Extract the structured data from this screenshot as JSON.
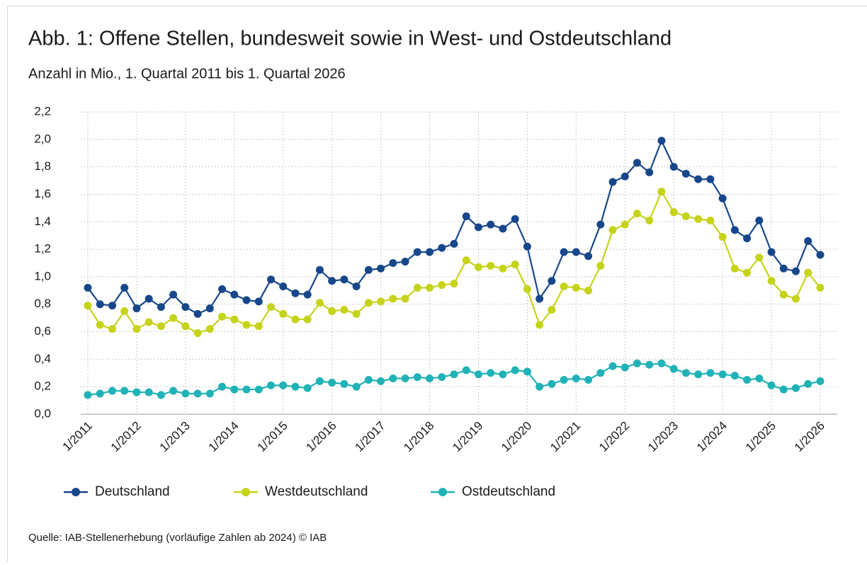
{
  "chart_data": {
    "type": "line",
    "title": "Abb. 1: Offene Stellen, bundesweit sowie in West- und Ostdeutschland",
    "subtitle": "Anzahl in Mio., 1. Quartal 2011 bis 1. Quartal 2026",
    "source": "Quelle: IAB-Stellenerhebung (vorläufige Zahlen ab 2024) © IAB",
    "categories": [
      "1/2011",
      null,
      null,
      null,
      "1/2012",
      null,
      null,
      null,
      "1/2013",
      null,
      null,
      null,
      "1/2014",
      null,
      null,
      null,
      "1/2015",
      null,
      null,
      null,
      "1/2016",
      null,
      null,
      null,
      "1/2017",
      null,
      null,
      null,
      "1/2018",
      null,
      null,
      null,
      "1/2019",
      null,
      null,
      null,
      "1/2020",
      null,
      null,
      null,
      "1/2021",
      null,
      null,
      null,
      "1/2022",
      null,
      null,
      null,
      "1/2023",
      null,
      null,
      null,
      "1/2024",
      null,
      null,
      null,
      "1/2025",
      null,
      null,
      null,
      "1/2026"
    ],
    "series": [
      {
        "name": "Deutschland",
        "color": "#17478a",
        "values": [
          0.92,
          0.8,
          0.79,
          0.92,
          0.77,
          0.84,
          0.78,
          0.87,
          0.78,
          0.73,
          0.77,
          0.91,
          0.87,
          0.83,
          0.82,
          0.98,
          0.93,
          0.88,
          0.87,
          1.05,
          0.97,
          0.98,
          0.93,
          1.05,
          1.06,
          1.1,
          1.11,
          1.18,
          1.18,
          1.21,
          1.24,
          1.44,
          1.36,
          1.38,
          1.35,
          1.42,
          1.22,
          0.84,
          0.97,
          1.18,
          1.18,
          1.15,
          1.38,
          1.69,
          1.73,
          1.83,
          1.76,
          1.99,
          1.8,
          1.75,
          1.71,
          1.71,
          1.57,
          1.34,
          1.28,
          1.41,
          1.18,
          1.06,
          1.04,
          1.26,
          1.16
        ]
      },
      {
        "name": "Westdeutschland",
        "color": "#c6d31b",
        "values": [
          0.79,
          0.65,
          0.62,
          0.75,
          0.62,
          0.67,
          0.64,
          0.7,
          0.64,
          0.59,
          0.62,
          0.71,
          0.69,
          0.65,
          0.64,
          0.78,
          0.73,
          0.69,
          0.69,
          0.81,
          0.75,
          0.76,
          0.73,
          0.81,
          0.82,
          0.84,
          0.84,
          0.92,
          0.92,
          0.94,
          0.95,
          1.12,
          1.07,
          1.08,
          1.06,
          1.09,
          0.91,
          0.65,
          0.76,
          0.93,
          0.92,
          0.9,
          1.08,
          1.34,
          1.38,
          1.46,
          1.41,
          1.62,
          1.47,
          1.44,
          1.42,
          1.41,
          1.29,
          1.06,
          1.03,
          1.14,
          0.97,
          0.87,
          0.84,
          1.03,
          0.92
        ]
      },
      {
        "name": "Ostdeutschland",
        "color": "#20b2b6",
        "values": [
          0.14,
          0.15,
          0.17,
          0.17,
          0.16,
          0.16,
          0.14,
          0.17,
          0.15,
          0.15,
          0.15,
          0.2,
          0.18,
          0.18,
          0.18,
          0.21,
          0.21,
          0.2,
          0.19,
          0.24,
          0.23,
          0.22,
          0.2,
          0.25,
          0.24,
          0.26,
          0.26,
          0.27,
          0.26,
          0.27,
          0.29,
          0.32,
          0.29,
          0.3,
          0.29,
          0.32,
          0.31,
          0.2,
          0.22,
          0.25,
          0.26,
          0.25,
          0.3,
          0.35,
          0.34,
          0.37,
          0.36,
          0.37,
          0.33,
          0.3,
          0.29,
          0.3,
          0.29,
          0.28,
          0.25,
          0.26,
          0.21,
          0.18,
          0.19,
          0.22,
          0.24
        ]
      }
    ],
    "ylim": [
      0,
      2.2
    ],
    "yticks": [
      {
        "value": 0,
        "label": "0,0"
      },
      {
        "value": 0.2,
        "label": "0,2"
      },
      {
        "value": 0.4,
        "label": "0,4"
      },
      {
        "value": 0.6,
        "label": "0,6"
      },
      {
        "value": 0.8,
        "label": "0,8"
      },
      {
        "value": 1.0,
        "label": "1,0"
      },
      {
        "value": 1.2,
        "label": "1,2"
      },
      {
        "value": 1.4,
        "label": "1,4"
      },
      {
        "value": 1.6,
        "label": "1,6"
      },
      {
        "value": 1.8,
        "label": "1,8"
      },
      {
        "value": 2.0,
        "label": "2,0"
      },
      {
        "value": 2.2,
        "label": "2,2"
      }
    ],
    "grid": true
  }
}
